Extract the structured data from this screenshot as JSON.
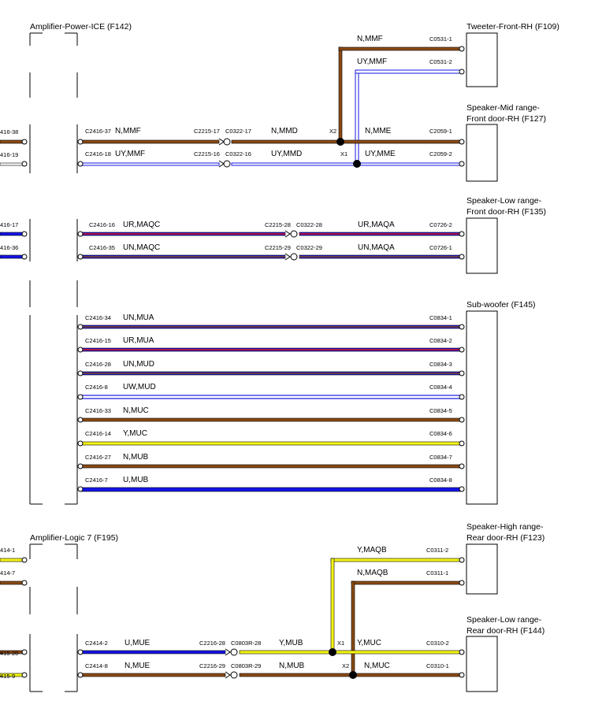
{
  "colors": {
    "N": "#8a4a14",
    "U": "#1414e6",
    "Y": "#f5f514",
    "W": "#ffffff",
    "R": "#e61414",
    "outline": "#000000"
  },
  "components": {
    "amp_power": "Amplifier-Power-ICE (F142)",
    "amp_logic": "Amplifier-Logic 7 (F195)",
    "tweeter": "Tweeter-Front-RH (F109)",
    "midrange": [
      "Speaker-Mid range-",
      "Front door-RH (F127)"
    ],
    "lowrange_front": [
      "Speaker-Low range-",
      "Front door-RH (F135)"
    ],
    "subwoofer": "Sub-woofer (F145)",
    "highrange_rear": [
      "Speaker-High range-",
      "Rear door-RH (F123)"
    ],
    "lowrange_rear": [
      "Speaker-Low range-",
      "Rear door-RH (F144)"
    ]
  },
  "left_stubs": [
    "416-38",
    "416-19",
    "416-17",
    "416-36",
    "414-1",
    "414-7",
    "415-20",
    "415-9"
  ],
  "wires": {
    "tweeter_a": {
      "code": "N,MMF",
      "pin": "C0531-1"
    },
    "tweeter_b": {
      "code": "UY,MMF",
      "pin": "C0531-2"
    },
    "mid_a": {
      "start_pin": "C2416-37",
      "code1": "N,MMF",
      "inline1": "C2215-17",
      "inline2": "C0322-17",
      "code2": "N,MMD",
      "splice": "X2",
      "code3": "N,MME",
      "end_pin": "C2059-1"
    },
    "mid_b": {
      "start_pin": "C2416-18",
      "code1": "UY,MMF",
      "inline1": "C2215-16",
      "inline2": "C0322-16",
      "code2": "UY,MMD",
      "splice": "X1",
      "code3": "UY,MME",
      "end_pin": "C2059-2"
    },
    "low_a": {
      "start_pin": "C2416-16",
      "code1": "UR,MAQC",
      "inline1": "C2215-28",
      "inline2": "C0322-28",
      "code2": "UR,MAQA",
      "end_pin": "C0726-2"
    },
    "low_b": {
      "start_pin": "C2416-35",
      "code1": "UN,MAQC",
      "inline1": "C2215-29",
      "inline2": "C0322-29",
      "code2": "UN,MAQA",
      "end_pin": "C0726-1"
    },
    "sub": [
      {
        "start_pin": "C2416-34",
        "code": "UN,MUA",
        "end_pin": "C0834-1"
      },
      {
        "start_pin": "C2416-15",
        "code": "UR,MUA",
        "end_pin": "C0834-2"
      },
      {
        "start_pin": "C2416-28",
        "code": "UN,MUD",
        "end_pin": "C0834-3"
      },
      {
        "start_pin": "C2416-8",
        "code": "UW,MUD",
        "end_pin": "C0834-4"
      },
      {
        "start_pin": "C2416-33",
        "code": "N,MUC",
        "end_pin": "C0834-5"
      },
      {
        "start_pin": "C2416-14",
        "code": "Y,MUC",
        "end_pin": "C0834-6"
      },
      {
        "start_pin": "C2416-27",
        "code": "N,MUB",
        "end_pin": "C0834-7"
      },
      {
        "start_pin": "C2416-7",
        "code": "U,MUB",
        "end_pin": "C0834-8"
      }
    ],
    "high_a": {
      "code": "Y,MAQB",
      "pin": "C0311-2"
    },
    "high_b": {
      "code": "N,MAQB",
      "pin": "C0311-1"
    },
    "rear_a": {
      "start_pin": "C2414-2",
      "code1": "U,MUE",
      "inline1": "C2216-28",
      "inline2": "C0803R-28",
      "code2": "Y,MUB",
      "splice": "X1",
      "code3": "Y,MUC",
      "end_pin": "C0310-2"
    },
    "rear_b": {
      "start_pin": "C2414-8",
      "code1": "N,MUE",
      "inline1": "C2216-29",
      "inline2": "C0803R-29",
      "code2": "N,MUB",
      "splice": "X2",
      "code3": "N,MUC",
      "end_pin": "C0310-1"
    }
  }
}
